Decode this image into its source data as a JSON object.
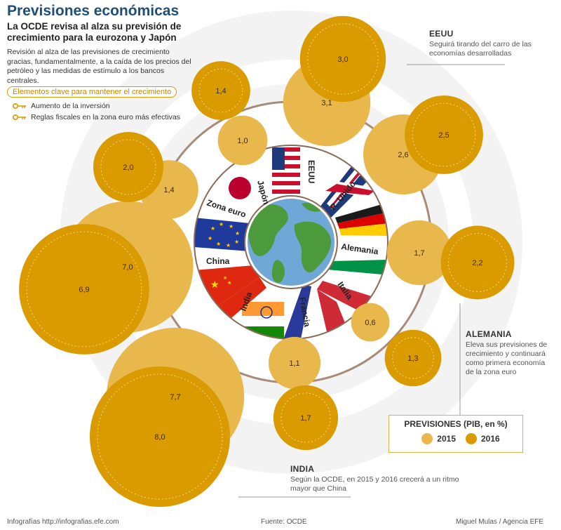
{
  "header": {
    "title": "Previsiones económicas",
    "subtitle": "La OCDE revisa al alza su previsión de crecimiento para la eurozona y Japón",
    "intro": "Revisión al alza de las previsiones de crecimiento gracias, fundamentalmente, a la caída de los precios del petróleo y las medidas de estímulo a los bancos centrales."
  },
  "keys": {
    "title": "Elementos clave para mantener el crecimiento",
    "items": [
      {
        "icon": "key-icon",
        "text": "Aumento de la inversión"
      },
      {
        "icon": "key-icon",
        "text": "Reglas fiscales en la zona euro más efectivas"
      }
    ]
  },
  "notes": {
    "eeuu": {
      "heading": "EEUU",
      "text": "Seguirá tirando del carro de las economías desarrolladas"
    },
    "alemania": {
      "heading": "ALEMANIA",
      "text": "Eleva sus previsiones de crecimiento y continuará como primera economía de la zona euro"
    },
    "india": {
      "heading": "INDIA",
      "text": "Según la OCDE, en 2015 y 2016 crecerá a un ritmo mayor que China"
    }
  },
  "legend": {
    "title": "PREVISIONES (PIB, en %)",
    "items": [
      {
        "label": "2015",
        "color": "#e8b84d"
      },
      {
        "label": "2016",
        "color": "#d99b00"
      }
    ]
  },
  "footer": {
    "left": "Infografías http://infografias.efe.com",
    "center": "Fuente: OCDE",
    "right": "Miguel Mulas / Agencia EFE"
  },
  "colors": {
    "y2015": "#e8b84d",
    "y2016": "#d99b00",
    "ring": "#a88a78",
    "bg_ring": "#f2f2f2",
    "globe_water": "#6fa8d6",
    "globe_land": "#4c9a3c"
  },
  "chart_data": {
    "type": "scatter",
    "title": "PREVISIONES (PIB, en %)",
    "series": [
      {
        "name": "2015",
        "values": [
          3.1,
          2.6,
          1.7,
          0.6,
          1.1,
          7.7,
          7.0,
          1.4,
          1.0
        ]
      },
      {
        "name": "2016",
        "values": [
          3.0,
          2.5,
          2.2,
          1.3,
          1.7,
          8.0,
          6.9,
          2.0,
          1.4
        ]
      }
    ],
    "categories": [
      "EEUU",
      "R. Unido",
      "Alemania",
      "Italia",
      "Francia",
      "India",
      "China",
      "Zona euro",
      "Japón"
    ],
    "value_labels": {
      "2015": [
        "3,1",
        "2,6",
        "1,7",
        "0,6",
        "1,1",
        "7,7",
        "7,0",
        "1,4",
        "1,0"
      ],
      "2016": [
        "3,0",
        "2,5",
        "2,2",
        "1,3",
        "1,7",
        "8,0",
        "6,9",
        "2,0",
        "1,4"
      ]
    }
  }
}
